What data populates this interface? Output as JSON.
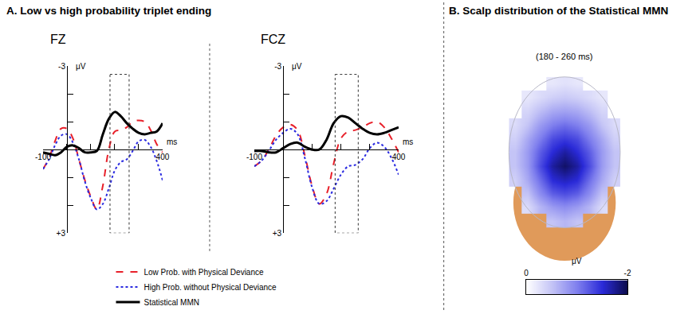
{
  "chart_data": [
    {
      "type": "line",
      "title": "FZ",
      "annotations": [
        "A. Low vs high probability triplet ending"
      ],
      "xlabel": "ms",
      "ylabel": "μV",
      "x": [
        -100,
        -75,
        -50,
        -25,
        0,
        25,
        50,
        75,
        100,
        125,
        150,
        175,
        200,
        225,
        250,
        275,
        300,
        325,
        350,
        375,
        400
      ],
      "xlim": [
        -100,
        400
      ],
      "xticks": [
        -100,
        {
          "value": 0,
          "label": null
        },
        {
          "value": 100,
          "label": null
        },
        {
          "value": 200,
          "label": null
        },
        {
          "value": 300,
          "label": null
        },
        400
      ],
      "ylim": [
        3,
        -3
      ],
      "yticks": [
        -3,
        {
          "value": -2,
          "label": null
        },
        {
          "value": -1,
          "label": null
        },
        {
          "value": 0,
          "label": null
        },
        {
          "value": 1,
          "label": null
        },
        {
          "value": 2,
          "label": null
        },
        {
          "value": 3,
          "label": "+3"
        }
      ],
      "highlight_window": {
        "x": [
          180,
          260
        ],
        "y": [
          -2.7,
          3
        ]
      },
      "legend": "bottom",
      "series": [
        {
          "name": "Low Prob. with Physical Deviance",
          "color": "#e8202a",
          "line_style": "dashed",
          "values": [
            0.7,
            0.3,
            -0.3,
            -0.75,
            -0.75,
            -0.4,
            0.35,
            1.1,
            1.7,
            2.15,
            1.3,
            0.0,
            -0.65,
            -0.7,
            -0.8,
            -1.0,
            -1.05,
            -1.0,
            -0.7,
            -0.2,
            0.1
          ]
        },
        {
          "name": "High Prob. without Physical Deviance",
          "color": "#2a2ae0",
          "line_style": "dotted",
          "values": [
            0.7,
            0.35,
            -0.15,
            -0.5,
            -0.55,
            -0.25,
            0.35,
            1.15,
            1.75,
            2.15,
            1.95,
            1.4,
            0.75,
            0.45,
            0.35,
            0.05,
            -0.3,
            -0.35,
            -0.1,
            0.4,
            1.1
          ]
        },
        {
          "name": "Statistical MMN",
          "color": "#000000",
          "line_style": "solid",
          "values": [
            0.1,
            0.15,
            0.2,
            0.1,
            -0.1,
            -0.15,
            -0.05,
            0.1,
            0.1,
            0.05,
            -0.55,
            -1.1,
            -1.35,
            -1.2,
            -0.95,
            -0.75,
            -0.6,
            -0.55,
            -0.6,
            -0.65,
            -0.95
          ]
        }
      ]
    },
    {
      "type": "line",
      "title": "FCZ",
      "xlabel": "ms",
      "ylabel": "μV",
      "x": [
        -100,
        -75,
        -50,
        -25,
        0,
        25,
        50,
        75,
        100,
        125,
        150,
        175,
        200,
        225,
        250,
        275,
        300,
        325,
        350,
        375,
        400
      ],
      "xlim": [
        -100,
        400
      ],
      "xticks": [
        -100,
        {
          "value": 0,
          "label": null
        },
        {
          "value": 100,
          "label": null
        },
        {
          "value": 200,
          "label": null
        },
        {
          "value": 300,
          "label": null
        },
        400
      ],
      "ylim": [
        3,
        -3
      ],
      "yticks": [
        -3,
        {
          "value": -2,
          "label": null
        },
        {
          "value": -1,
          "label": null
        },
        {
          "value": 0,
          "label": null
        },
        {
          "value": 1,
          "label": null
        },
        {
          "value": 2,
          "label": null
        },
        {
          "value": 3,
          "label": "+3"
        }
      ],
      "highlight_window": {
        "x": [
          180,
          260
        ],
        "y": [
          -2.7,
          3
        ]
      },
      "series": [
        {
          "name": "Low Prob. with Physical Deviance",
          "color": "#e8202a",
          "line_style": "dashed",
          "values": [
            0.6,
            0.4,
            0.0,
            -0.5,
            -0.8,
            -0.9,
            -0.7,
            0.2,
            1.3,
            1.95,
            1.6,
            0.5,
            -0.4,
            -0.65,
            -0.7,
            -0.8,
            -0.95,
            -1.0,
            -0.8,
            -0.4,
            0.1
          ]
        },
        {
          "name": "High Prob. without Physical Deviance",
          "color": "#2a2ae0",
          "line_style": "dotted",
          "values": [
            0.6,
            0.4,
            0.05,
            -0.35,
            -0.6,
            -0.75,
            -0.55,
            0.3,
            1.35,
            1.95,
            1.85,
            1.4,
            0.9,
            0.6,
            0.55,
            0.35,
            -0.05,
            -0.25,
            -0.1,
            0.3,
            0.9
          ]
        },
        {
          "name": "Statistical MMN",
          "color": "#000000",
          "line_style": "solid",
          "values": [
            0.05,
            0.05,
            0.1,
            0.1,
            -0.05,
            -0.2,
            -0.25,
            -0.1,
            0.0,
            0.0,
            -0.35,
            -0.95,
            -1.2,
            -1.15,
            -0.95,
            -0.75,
            -0.6,
            -0.55,
            -0.6,
            -0.7,
            -0.8
          ]
        }
      ]
    },
    {
      "type": "topomap",
      "title": "B. Scalp distribution of the Statistical MMN",
      "subtitle": "(180 - 260 ms)",
      "colors": [
        "#ffffff",
        "#c4c4f6",
        "#7f7fee",
        "#2a2ad8",
        "#0c0c4a"
      ],
      "colorbar": {
        "label": "μV",
        "range": [
          0,
          -2
        ],
        "ticks": [
          0,
          -2
        ]
      },
      "cells": [
        [
          null,
          null,
          null,
          -0.2,
          -0.25,
          -0.2,
          null,
          null,
          null
        ],
        [
          null,
          -0.2,
          -0.3,
          -0.4,
          -0.45,
          -0.4,
          -0.3,
          -0.2,
          null
        ],
        [
          null,
          -0.35,
          -0.55,
          -0.7,
          -0.75,
          -0.7,
          -0.55,
          -0.35,
          null
        ],
        [
          -0.3,
          -0.5,
          -0.8,
          -1.0,
          -1.1,
          -1.0,
          -0.8,
          -0.5,
          -0.3
        ],
        [
          -0.4,
          -0.7,
          -1.0,
          -1.3,
          -1.4,
          -1.3,
          -1.0,
          -0.7,
          -0.4
        ],
        [
          -0.5,
          -0.8,
          -1.2,
          -1.5,
          -1.7,
          -1.5,
          -1.2,
          -0.8,
          -0.5
        ],
        [
          -0.5,
          -0.8,
          -1.3,
          -1.7,
          -1.9,
          -1.7,
          -1.3,
          -0.8,
          -0.5
        ],
        [
          -0.4,
          -0.7,
          -1.1,
          -1.5,
          -1.6,
          -1.5,
          -1.1,
          -0.7,
          -0.4
        ],
        [
          null,
          -0.5,
          -0.9,
          -1.2,
          -1.3,
          -1.2,
          -0.9,
          -0.5,
          null
        ],
        [
          null,
          -0.3,
          -0.6,
          -0.8,
          -0.9,
          -0.8,
          -0.6,
          -0.3,
          null
        ],
        [
          null,
          null,
          null,
          -0.5,
          -0.6,
          -0.5,
          null,
          null,
          null
        ]
      ]
    }
  ]
}
